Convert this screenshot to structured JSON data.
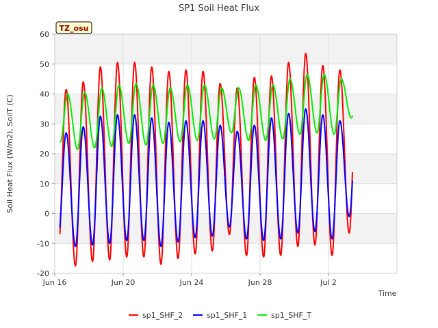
{
  "chart_data": {
    "type": "line",
    "title": "SP1 Soil Heat Flux",
    "xlabel": "Time",
    "ylabel": "Soil Heat Flux (W/m2), SoilT (C)",
    "ylim": [
      -20,
      60
    ],
    "xlim": [
      0,
      20
    ],
    "yticks": [
      -20,
      -10,
      0,
      10,
      20,
      30,
      40,
      50,
      60
    ],
    "xticks": [
      {
        "label": "Jun 16",
        "day": 0
      },
      {
        "label": "Jun 20",
        "day": 4
      },
      {
        "label": "Jun 24",
        "day": 8
      },
      {
        "label": "Jun 28",
        "day": 12
      },
      {
        "label": "Jul 2",
        "day": 16
      }
    ],
    "x_domain_note": "x values in days since Jun 16 00:00",
    "grid": true,
    "legend_position": "bottom",
    "annotation": "TZ_osu",
    "series": [
      {
        "name": "sp1_SHF_2",
        "color": "#ff0000",
        "x_start": 0.3,
        "x_end": 17.4,
        "daily_max": [
          41.5,
          44,
          49,
          50.5,
          50.5,
          49,
          47.5,
          48,
          47.5,
          43.5,
          42,
          45.5,
          46,
          50.5,
          53.5,
          49.5,
          48
        ],
        "daily_min": [
          -12,
          -17.5,
          -16,
          -15.5,
          -14.5,
          -14.5,
          -17,
          -15,
          -13.5,
          -12.5,
          -7,
          -14,
          -14.5,
          -14,
          -11,
          -10.5,
          -14,
          -6.5
        ],
        "peak_hour": 16,
        "min_hour": 5
      },
      {
        "name": "sp1_SHF_1",
        "color": "#0000ff",
        "x_start": 0.3,
        "x_end": 17.4,
        "daily_max": [
          27,
          29,
          32.5,
          33,
          33,
          32,
          30.5,
          31,
          31,
          29.5,
          27.5,
          29.5,
          32,
          33.5,
          35,
          33,
          31
        ],
        "daily_min": [
          -8,
          -11,
          -10.5,
          -10,
          -9,
          -9,
          -11,
          -9.5,
          -8,
          -7.5,
          -4.5,
          -8.5,
          -9,
          -8.5,
          -6.5,
          -6,
          -8.5,
          -1
        ],
        "peak_hour": 16,
        "min_hour": 5
      },
      {
        "name": "sp1_SHF_T",
        "color": "#00ee00",
        "x_start": 0.3,
        "x_end": 17.4,
        "daily_max": [
          40,
          40.5,
          42,
          43,
          43.5,
          43,
          42,
          43,
          43,
          42,
          42,
          43,
          43,
          45,
          46.5,
          46.5,
          45
        ],
        "daily_min": [
          24,
          21.5,
          22,
          22.5,
          23.5,
          23,
          23.5,
          24,
          24.5,
          25,
          27,
          24.5,
          24.5,
          25,
          26.5,
          27,
          26.5,
          32
        ],
        "peak_hour": 18,
        "min_hour": 8
      }
    ]
  }
}
